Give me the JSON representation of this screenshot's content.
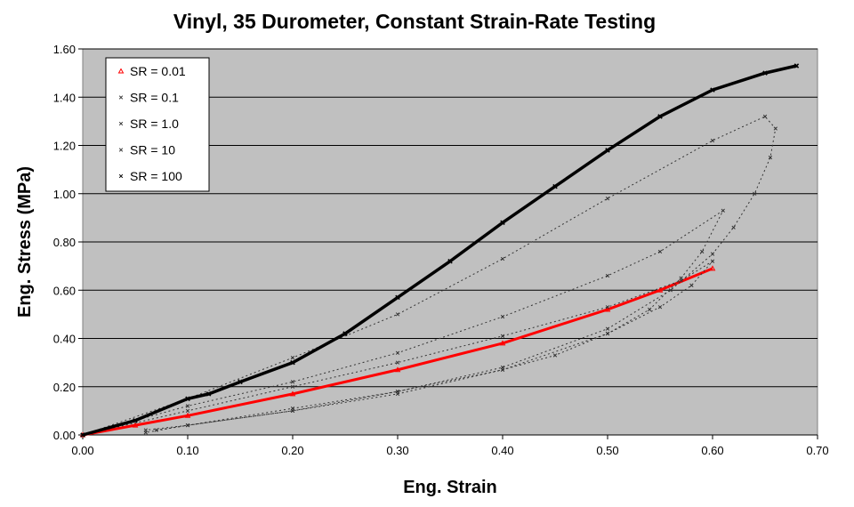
{
  "chart_data": {
    "type": "scatter",
    "title": "Vinyl, 35 Durometer, Constant Strain-Rate Testing",
    "xlabel": "Eng. Strain",
    "ylabel": "Eng. Stress (MPa)",
    "xlim": [
      0,
      0.7
    ],
    "ylim": [
      0,
      1.6
    ],
    "xticks": [
      "0.00",
      "0.10",
      "0.20",
      "0.30",
      "0.40",
      "0.50",
      "0.60",
      "0.70"
    ],
    "yticks": [
      "0.00",
      "0.20",
      "0.40",
      "0.60",
      "0.80",
      "1.00",
      "1.20",
      "1.40",
      "1.60"
    ],
    "grid": "horizontal",
    "legend_position": "top-left",
    "background": "#c0c0c0",
    "series": [
      {
        "name": "SR = 0.01",
        "color": "#ff0000",
        "marker": "triangle",
        "x": [
          0,
          0.05,
          0.1,
          0.2,
          0.3,
          0.4,
          0.5,
          0.55,
          0.6
        ],
        "y": [
          0,
          0.04,
          0.08,
          0.17,
          0.27,
          0.38,
          0.52,
          0.6,
          0.69
        ]
      },
      {
        "name": "SR = 0.1",
        "color": "#333333",
        "marker": "x",
        "x": [
          0,
          0.1,
          0.2,
          0.3,
          0.4,
          0.5,
          0.57,
          0.6,
          0.58,
          0.55,
          0.5,
          0.45,
          0.4,
          0.3,
          0.2,
          0.1,
          0.06
        ],
        "y": [
          0,
          0.1,
          0.2,
          0.3,
          0.41,
          0.53,
          0.64,
          0.72,
          0.62,
          0.53,
          0.42,
          0.33,
          0.27,
          0.18,
          0.11,
          0.04,
          0.01
        ]
      },
      {
        "name": "SR = 1.0",
        "color": "#333333",
        "marker": "x",
        "x": [
          0,
          0.1,
          0.2,
          0.3,
          0.4,
          0.5,
          0.55,
          0.61,
          0.59,
          0.57,
          0.54,
          0.5,
          0.4,
          0.3,
          0.2,
          0.1,
          0.07
        ],
        "y": [
          0,
          0.12,
          0.22,
          0.34,
          0.49,
          0.66,
          0.76,
          0.93,
          0.76,
          0.65,
          0.52,
          0.42,
          0.27,
          0.17,
          0.1,
          0.04,
          0.02
        ]
      },
      {
        "name": "SR = 10",
        "color": "#333333",
        "marker": "x",
        "x": [
          0,
          0.1,
          0.2,
          0.3,
          0.4,
          0.5,
          0.6,
          0.65,
          0.66,
          0.655,
          0.64,
          0.62,
          0.6,
          0.56,
          0.5,
          0.4,
          0.3,
          0.2,
          0.1,
          0.06
        ],
        "y": [
          0,
          0.15,
          0.32,
          0.5,
          0.73,
          0.98,
          1.22,
          1.32,
          1.27,
          1.15,
          1.0,
          0.86,
          0.75,
          0.6,
          0.44,
          0.28,
          0.18,
          0.1,
          0.04,
          0.02
        ]
      },
      {
        "name": "SR = 100",
        "color": "#000000",
        "marker": "x",
        "x": [
          0,
          0.05,
          0.1,
          0.12,
          0.15,
          0.2,
          0.25,
          0.3,
          0.35,
          0.4,
          0.45,
          0.5,
          0.55,
          0.6,
          0.65,
          0.68
        ],
        "y": [
          0,
          0.06,
          0.15,
          0.17,
          0.22,
          0.3,
          0.42,
          0.57,
          0.72,
          0.88,
          1.03,
          1.18,
          1.32,
          1.43,
          1.5,
          1.53
        ]
      }
    ]
  }
}
